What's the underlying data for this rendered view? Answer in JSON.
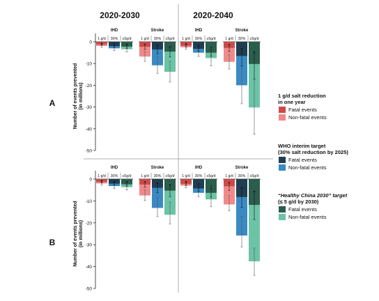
{
  "chart_data": {
    "type": "bar",
    "column_titles": [
      "2020-2030",
      "2020-2040"
    ],
    "row_labels": [
      "A",
      "B"
    ],
    "ylabel": "Number of events prevented\n(in millions)",
    "ylim": [
      -50,
      0
    ],
    "yticks": [
      0,
      -10,
      -20,
      -30,
      -40,
      -50
    ],
    "group_labels": [
      "IHD",
      "Stroke"
    ],
    "scenario_labels": [
      "1 g/d",
      "30%",
      "≤5g/d"
    ],
    "legend": [
      {
        "title": "1 g/d salt reduction\nin one year",
        "title_style": "bold",
        "entries": [
          {
            "label": "Fatal events",
            "color": "#cc4a4a"
          },
          {
            "label": "Non-fatal events",
            "color": "#f08a8a"
          }
        ]
      },
      {
        "title": "WHO interim target\n(30% salt reduction by 2025)",
        "title_style": "bold",
        "entries": [
          {
            "label": "Fatal events",
            "color": "#1f3e52"
          },
          {
            "label": "Non-fatal events",
            "color": "#3a8ac4"
          }
        ]
      },
      {
        "title": "“Healthy China 2030” target\n(≤ 5 g/d by 2030)",
        "title_style": "bold-italic-first",
        "entries": [
          {
            "label": "Fatal events",
            "color": "#2b5e4c"
          },
          {
            "label": "Non-fatal events",
            "color": "#6cc3a5"
          }
        ]
      }
    ],
    "panels": [
      {
        "row": "A",
        "period": "2020-2030",
        "groups": [
          {
            "name": "IHD",
            "bars": [
              {
                "scenario": "1 g/d",
                "fatal": -1.2,
                "total": -1.9,
                "fatal_err": [
                  -1.6,
                  -0.8
                ],
                "total_err": [
                  -2.6,
                  -1.3
                ]
              },
              {
                "scenario": "30%",
                "fatal": -2.0,
                "total": -3.0,
                "fatal_err": [
                  -2.6,
                  -1.4
                ],
                "total_err": [
                  -4.0,
                  -2.1
                ]
              },
              {
                "scenario": "≤5g/d",
                "fatal": -2.2,
                "total": -3.4,
                "fatal_err": [
                  -3.0,
                  -1.5
                ],
                "total_err": [
                  -4.6,
                  -2.4
                ]
              }
            ]
          },
          {
            "name": "Stroke",
            "bars": [
              {
                "scenario": "1 g/d",
                "fatal": -2.3,
                "total": -6.8,
                "fatal_err": [
                  -3.5,
                  -1.2
                ],
                "total_err": [
                  -9.0,
                  -4.5
                ]
              },
              {
                "scenario": "30%",
                "fatal": -3.5,
                "total": -10.8,
                "fatal_err": [
                  -5.5,
                  -1.8
                ],
                "total_err": [
                  -14.5,
                  -7.0
                ]
              },
              {
                "scenario": "≤5g/d",
                "fatal": -4.5,
                "total": -13.8,
                "fatal_err": [
                  -7.0,
                  -2.3
                ],
                "total_err": [
                  -18.5,
                  -9.0
                ]
              }
            ]
          }
        ]
      },
      {
        "row": "A",
        "period": "2020-2040",
        "groups": [
          {
            "name": "IHD",
            "bars": [
              {
                "scenario": "1 g/d",
                "fatal": -1.8,
                "total": -2.5,
                "fatal_err": [
                  -2.4,
                  -1.2
                ],
                "total_err": [
                  -3.4,
                  -1.8
                ]
              },
              {
                "scenario": "30%",
                "fatal": -3.2,
                "total": -5.0,
                "fatal_err": [
                  -4.3,
                  -2.1
                ],
                "total_err": [
                  -6.7,
                  -3.3
                ]
              },
              {
                "scenario": "≤5g/d",
                "fatal": -5.0,
                "total": -7.5,
                "fatal_err": [
                  -6.6,
                  -3.3
                ],
                "total_err": [
                  -11.0,
                  -4.4
                ]
              }
            ]
          },
          {
            "name": "Stroke",
            "bars": [
              {
                "scenario": "1 g/d",
                "fatal": -2.8,
                "total": -9.2,
                "fatal_err": [
                  -4.5,
                  -1.3
                ],
                "total_err": [
                  -12.5,
                  -6.0
                ]
              },
              {
                "scenario": "30%",
                "fatal": -6.5,
                "total": -20.0,
                "fatal_err": [
                  -11.0,
                  -3.0
                ],
                "total_err": [
                  -28.5,
                  -11.5
                ]
              },
              {
                "scenario": "≤5g/d",
                "fatal": -10.2,
                "total": -30.2,
                "fatal_err": [
                  -17.0,
                  -4.5
                ],
                "total_err": [
                  -42.5,
                  -17.5
                ]
              }
            ]
          }
        ]
      },
      {
        "row": "B",
        "period": "2020-2030",
        "groups": [
          {
            "name": "IHD",
            "bars": [
              {
                "scenario": "1 g/d",
                "fatal": -1.3,
                "total": -2.0,
                "fatal_err": [
                  -1.8,
                  -0.9
                ],
                "total_err": [
                  -2.8,
                  -1.4
                ]
              },
              {
                "scenario": "30%",
                "fatal": -2.1,
                "total": -3.2,
                "fatal_err": [
                  -2.8,
                  -1.4
                ],
                "total_err": [
                  -4.3,
                  -2.2
                ]
              },
              {
                "scenario": "≤5g/d",
                "fatal": -2.4,
                "total": -3.7,
                "fatal_err": [
                  -3.2,
                  -1.6
                ],
                "total_err": [
                  -5.0,
                  -2.6
                ]
              }
            ]
          },
          {
            "name": "Stroke",
            "bars": [
              {
                "scenario": "1 g/d",
                "fatal": -2.5,
                "total": -7.5,
                "fatal_err": [
                  -3.8,
                  -1.3
                ],
                "total_err": [
                  -9.8,
                  -5.0
                ]
              },
              {
                "scenario": "30%",
                "fatal": -4.0,
                "total": -13.2,
                "fatal_err": [
                  -6.3,
                  -2.0
                ],
                "total_err": [
                  -17.0,
                  -8.5
                ]
              },
              {
                "scenario": "≤5g/d",
                "fatal": -5.3,
                "total": -16.3,
                "fatal_err": [
                  -8.0,
                  -2.7
                ],
                "total_err": [
                  -20.5,
                  -10.5
                ]
              }
            ]
          }
        ]
      },
      {
        "row": "B",
        "period": "2020-2040",
        "groups": [
          {
            "name": "IHD",
            "bars": [
              {
                "scenario": "1 g/d",
                "fatal": -2.2,
                "total": -3.0,
                "fatal_err": [
                  -2.9,
                  -1.5
                ],
                "total_err": [
                  -4.0,
                  -2.2
                ]
              },
              {
                "scenario": "30%",
                "fatal": -4.3,
                "total": -6.3,
                "fatal_err": [
                  -5.6,
                  -2.9
                ],
                "total_err": [
                  -8.0,
                  -4.5
                ]
              },
              {
                "scenario": "≤5g/d",
                "fatal": -6.3,
                "total": -9.3,
                "fatal_err": [
                  -8.3,
                  -4.2
                ],
                "total_err": [
                  -12.5,
                  -6.0
                ]
              }
            ]
          },
          {
            "name": "Stroke",
            "bars": [
              {
                "scenario": "1 g/d",
                "fatal": -3.3,
                "total": -11.6,
                "fatal_err": [
                  -5.2,
                  -1.6
                ],
                "total_err": [
                  -14.5,
                  -7.5
                ]
              },
              {
                "scenario": "30%",
                "fatal": -8.2,
                "total": -25.8,
                "fatal_err": [
                  -13.0,
                  -4.0
                ],
                "total_err": [
                  -31.0,
                  -17.0
                ]
              },
              {
                "scenario": "≤5g/d",
                "fatal": -11.8,
                "total": -37.6,
                "fatal_err": [
                  -18.5,
                  -5.5
                ],
                "total_err": [
                  -44.0,
                  -31.5
                ]
              }
            ]
          }
        ]
      }
    ]
  }
}
